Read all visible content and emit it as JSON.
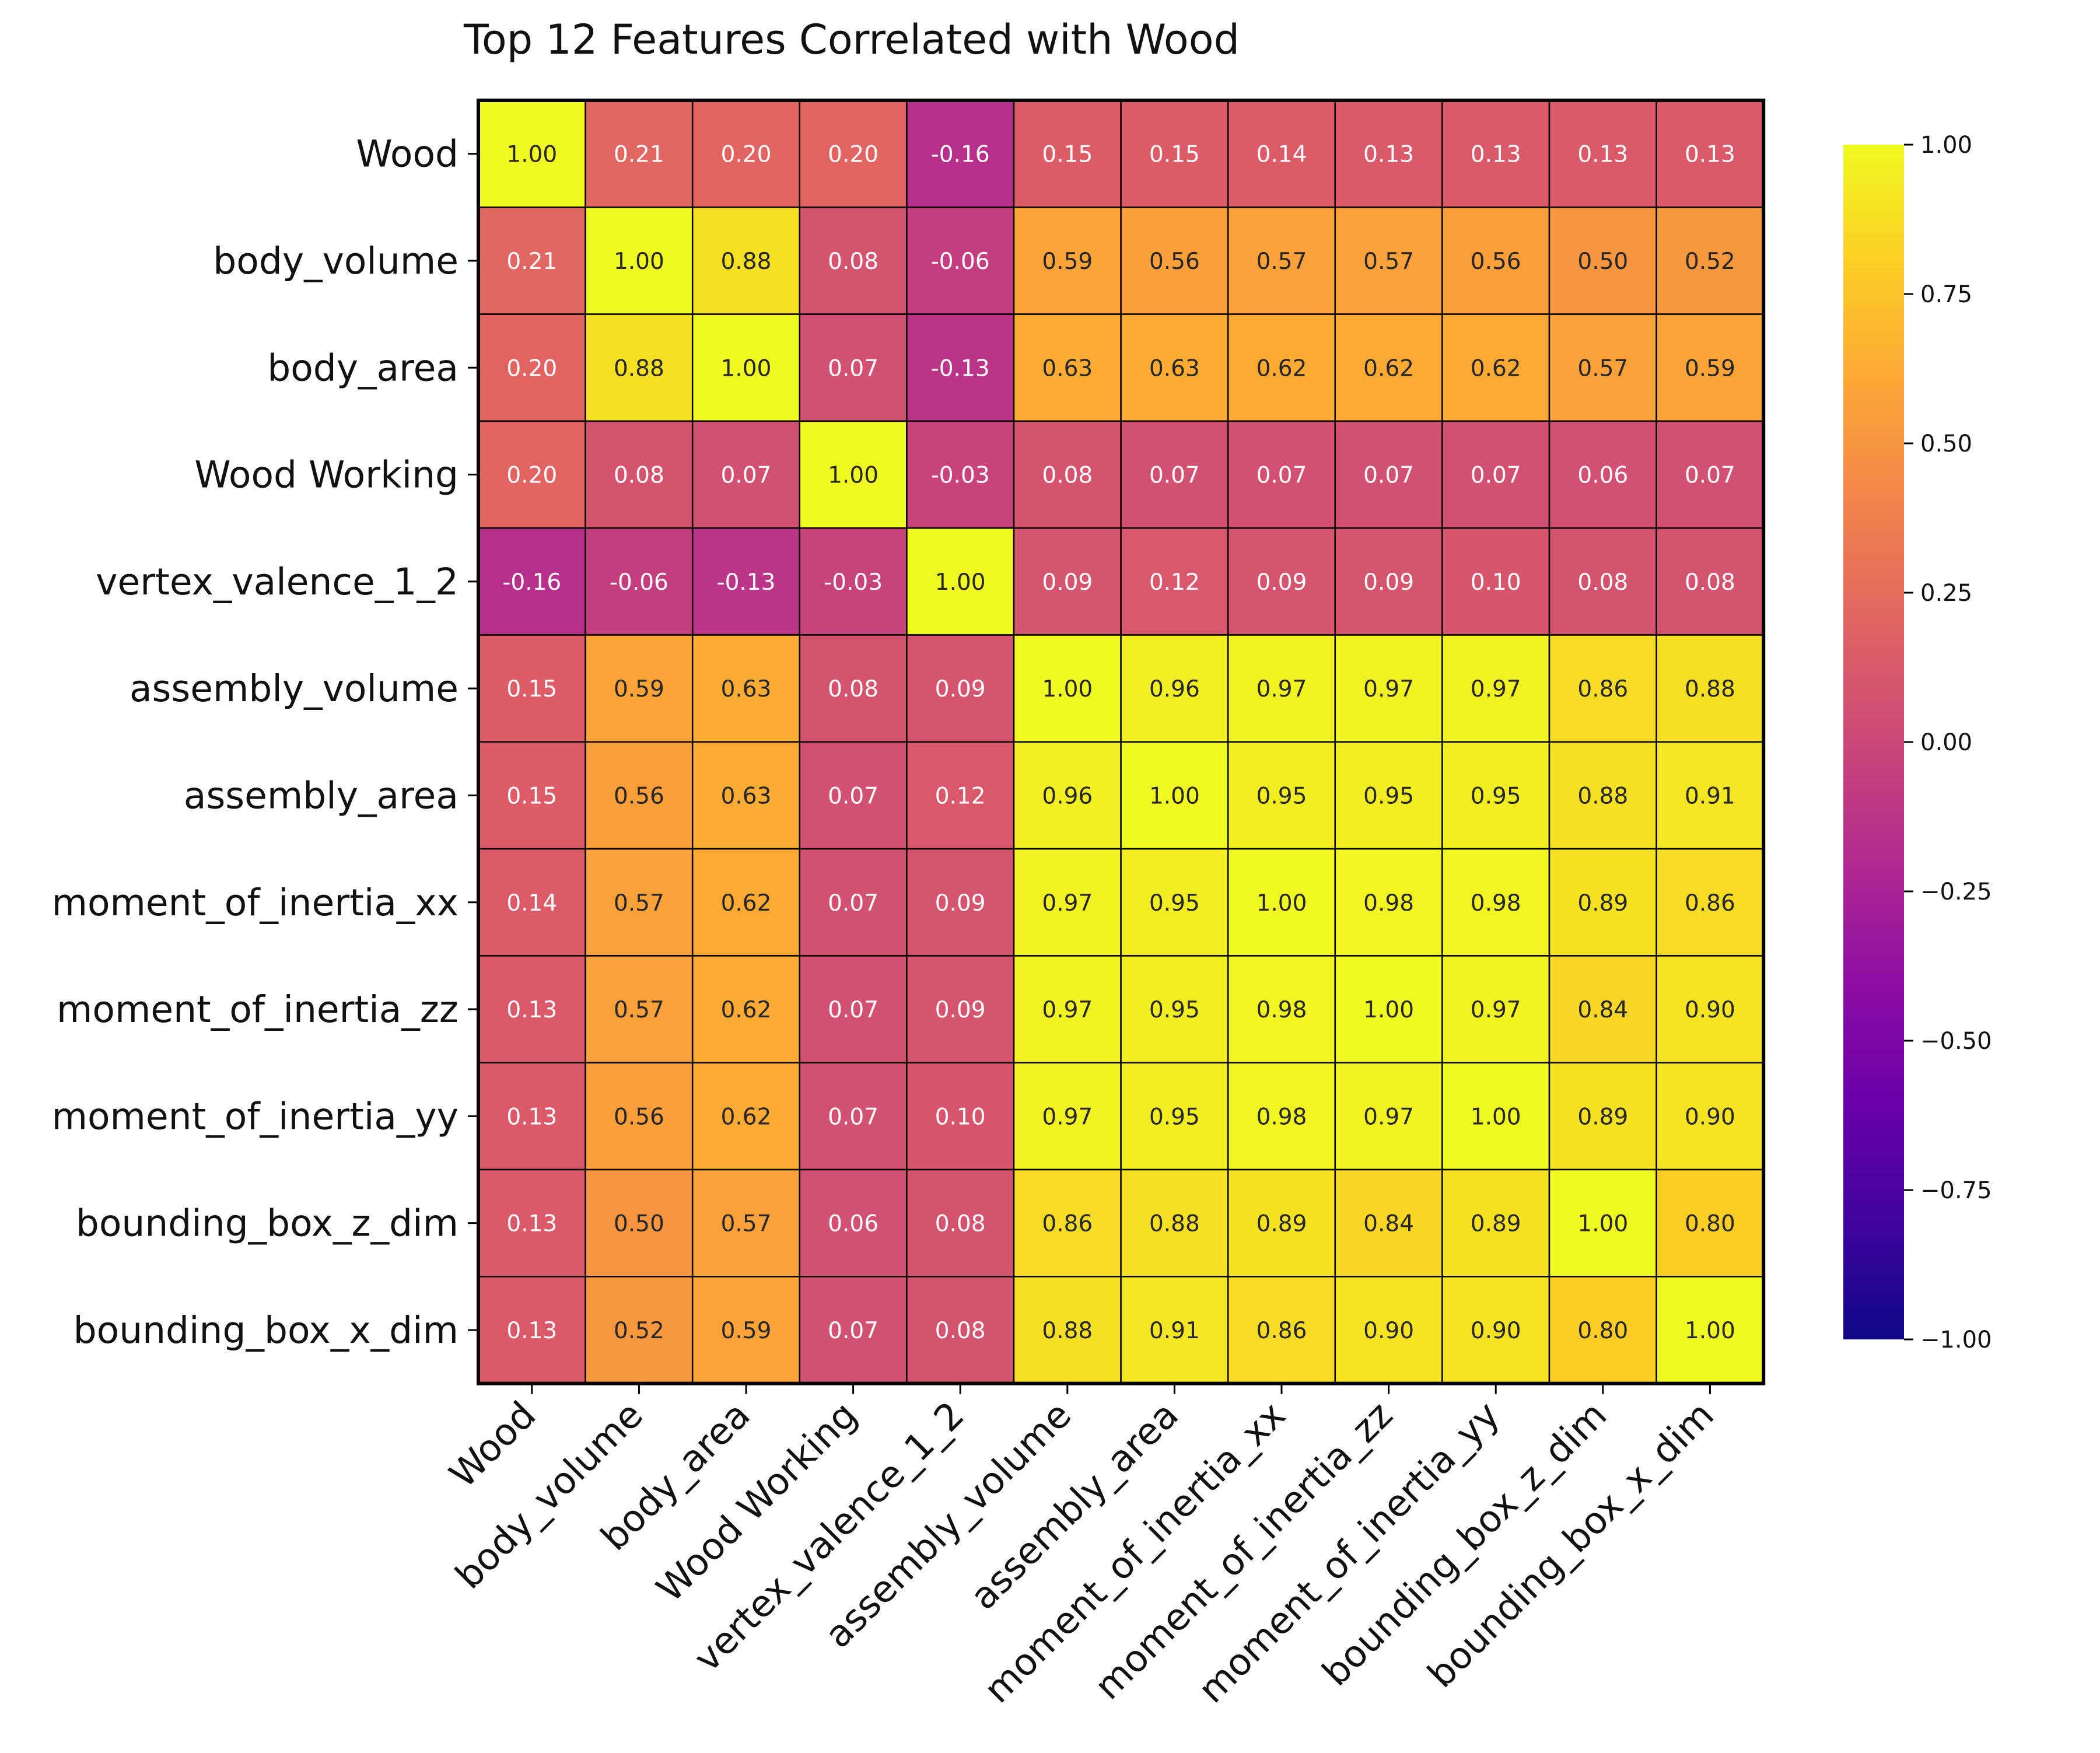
{
  "chart_data": {
    "type": "heatmap",
    "title": "Top 12 Features Correlated with Wood",
    "xlabel": "",
    "ylabel": "",
    "labels": [
      "Wood",
      "body_volume",
      "body_area",
      "Wood Working",
      "vertex_valence_1_2",
      "assembly_volume",
      "assembly_area",
      "moment_of_inertia_xx",
      "moment_of_inertia_zz",
      "moment_of_inertia_yy",
      "bounding_box_z_dim",
      "bounding_box_x_dim"
    ],
    "matrix": [
      [
        1.0,
        0.21,
        0.2,
        0.2,
        -0.16,
        0.15,
        0.15,
        0.14,
        0.13,
        0.13,
        0.13,
        0.13
      ],
      [
        0.21,
        1.0,
        0.88,
        0.08,
        -0.06,
        0.59,
        0.56,
        0.57,
        0.57,
        0.56,
        0.5,
        0.52
      ],
      [
        0.2,
        0.88,
        1.0,
        0.07,
        -0.13,
        0.63,
        0.63,
        0.62,
        0.62,
        0.62,
        0.57,
        0.59
      ],
      [
        0.2,
        0.08,
        0.07,
        1.0,
        -0.03,
        0.08,
        0.07,
        0.07,
        0.07,
        0.07,
        0.06,
        0.07
      ],
      [
        -0.16,
        -0.06,
        -0.13,
        -0.03,
        1.0,
        0.09,
        0.12,
        0.09,
        0.09,
        0.1,
        0.08,
        0.08
      ],
      [
        0.15,
        0.59,
        0.63,
        0.08,
        0.09,
        1.0,
        0.96,
        0.97,
        0.97,
        0.97,
        0.86,
        0.88
      ],
      [
        0.15,
        0.56,
        0.63,
        0.07,
        0.12,
        0.96,
        1.0,
        0.95,
        0.95,
        0.95,
        0.88,
        0.91
      ],
      [
        0.14,
        0.57,
        0.62,
        0.07,
        0.09,
        0.97,
        0.95,
        1.0,
        0.98,
        0.98,
        0.89,
        0.86
      ],
      [
        0.13,
        0.57,
        0.62,
        0.07,
        0.09,
        0.97,
        0.95,
        0.98,
        1.0,
        0.97,
        0.84,
        0.9
      ],
      [
        0.13,
        0.56,
        0.62,
        0.07,
        0.1,
        0.97,
        0.95,
        0.98,
        0.97,
        1.0,
        0.89,
        0.9
      ],
      [
        0.13,
        0.5,
        0.57,
        0.06,
        0.08,
        0.86,
        0.88,
        0.89,
        0.84,
        0.89,
        1.0,
        0.8
      ],
      [
        0.13,
        0.52,
        0.59,
        0.07,
        0.08,
        0.88,
        0.91,
        0.86,
        0.9,
        0.9,
        0.8,
        1.0
      ]
    ],
    "value_format": "2 decimals",
    "colorscale": "plasma",
    "vmin": -1.0,
    "vmax": 1.0,
    "colorbar_ticks": [
      1.0,
      0.75,
      0.5,
      0.25,
      0.0,
      -0.25,
      -0.5,
      -0.75,
      -1.0
    ],
    "colorbar_tick_labels": [
      "1.00",
      "0.75",
      "0.50",
      "0.25",
      "0.00",
      "−0.25",
      "−0.50",
      "−0.75",
      "−1.00"
    ],
    "grid": true,
    "colorbar_position": "right"
  }
}
